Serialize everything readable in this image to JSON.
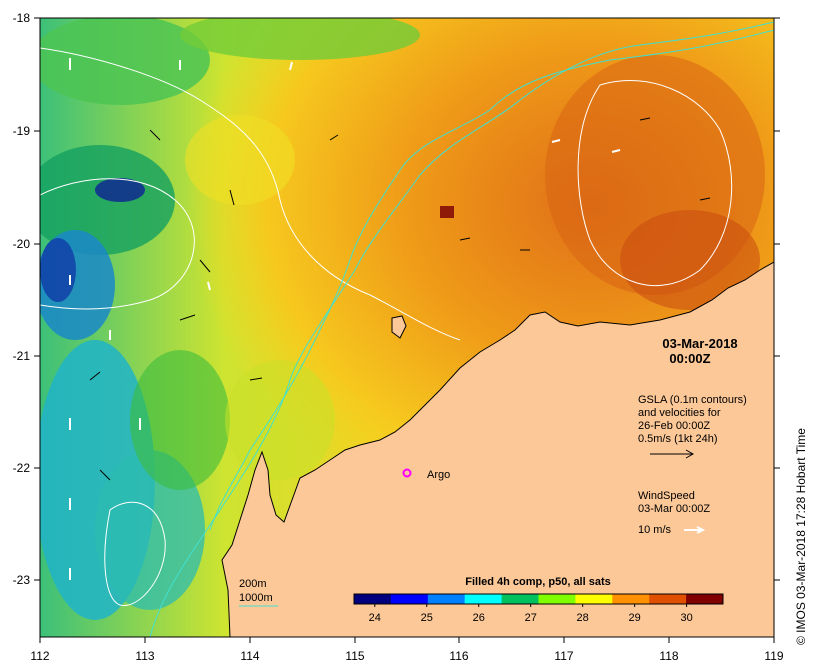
{
  "map": {
    "lon_ticks": [
      "112",
      "113",
      "114",
      "115",
      "116",
      "117",
      "118",
      "119"
    ],
    "lat_ticks": [
      "-18",
      "-19",
      "-20",
      "-21",
      "-22",
      "-23"
    ],
    "lon_range": [
      112,
      119
    ],
    "lat_range": [
      -23.5,
      -18
    ],
    "land_color": "#fcc898",
    "coast_color": "#000000",
    "contour_color": "#ffffff",
    "isobath_color": "#40e0d0"
  },
  "date_title": {
    "date": "03-Mar-2018",
    "time": "00:00Z"
  },
  "gsla_legend": {
    "line1": "GSLA (0.1m contours)",
    "line2": "and velocities for",
    "line3": "26-Feb 00:00Z",
    "line4": "0.5m/s (1kt 24h)"
  },
  "wind_legend": {
    "line1": "WindSpeed",
    "line2": "03-Mar 00:00Z",
    "line3": "10 m/s"
  },
  "argo": {
    "label": "Argo",
    "color": "#ff00ff",
    "lon": 115.5,
    "lat": -22.04
  },
  "depth_legend": {
    "label1": "200m",
    "label2": "1000m"
  },
  "colorbar": {
    "title": "Filled 4h comp, p50, all sats",
    "ticks": [
      "24",
      "25",
      "26",
      "27",
      "28",
      "29",
      "30"
    ],
    "range": [
      23.6,
      30.7
    ],
    "colors": [
      "#00007f",
      "#0000ff",
      "#0080ff",
      "#00ffff",
      "#00c060",
      "#80ff00",
      "#ffff00",
      "#ff9000",
      "#e05000",
      "#800000"
    ]
  },
  "credit": "© IMOS 03-Mar-2018 17:28 Hobart Time"
}
